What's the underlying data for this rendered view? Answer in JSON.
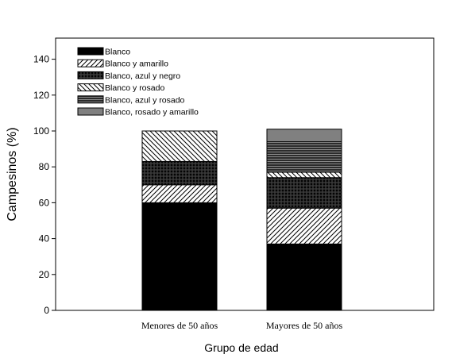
{
  "chart_data": {
    "type": "bar",
    "stacked": true,
    "categories": [
      "Menores de 50 años",
      "Mayores de 50 años"
    ],
    "series": [
      {
        "name": "Blanco",
        "values": [
          60,
          37
        ],
        "pattern": "solid-black"
      },
      {
        "name": "Blanco y amarillo",
        "values": [
          10,
          20
        ],
        "pattern": "hatch-forward"
      },
      {
        "name": "Blanco, azul y negro",
        "values": [
          13,
          17
        ],
        "pattern": "crosshatch-dense"
      },
      {
        "name": "Blanco y rosado",
        "values": [
          17,
          3
        ],
        "pattern": "hatch-back"
      },
      {
        "name": "Blanco, azul y rosado",
        "values": [
          0,
          17
        ],
        "pattern": "horizontal-lines"
      },
      {
        "name": "Blanco, rosado y amarillo",
        "values": [
          0,
          7
        ],
        "pattern": "solid-gray"
      }
    ],
    "xlabel": "Grupo de edad",
    "ylabel": "Campesinos (%)",
    "ylim": [
      0,
      150
    ],
    "yticks": [
      0,
      20,
      40,
      60,
      80,
      100,
      120,
      140
    ],
    "legend_position": "top-left",
    "grid": false,
    "colors": {
      "bar_border": "#000000",
      "gray_fill": "#808080",
      "dark_lines_bg": "#2b2b2b"
    }
  }
}
